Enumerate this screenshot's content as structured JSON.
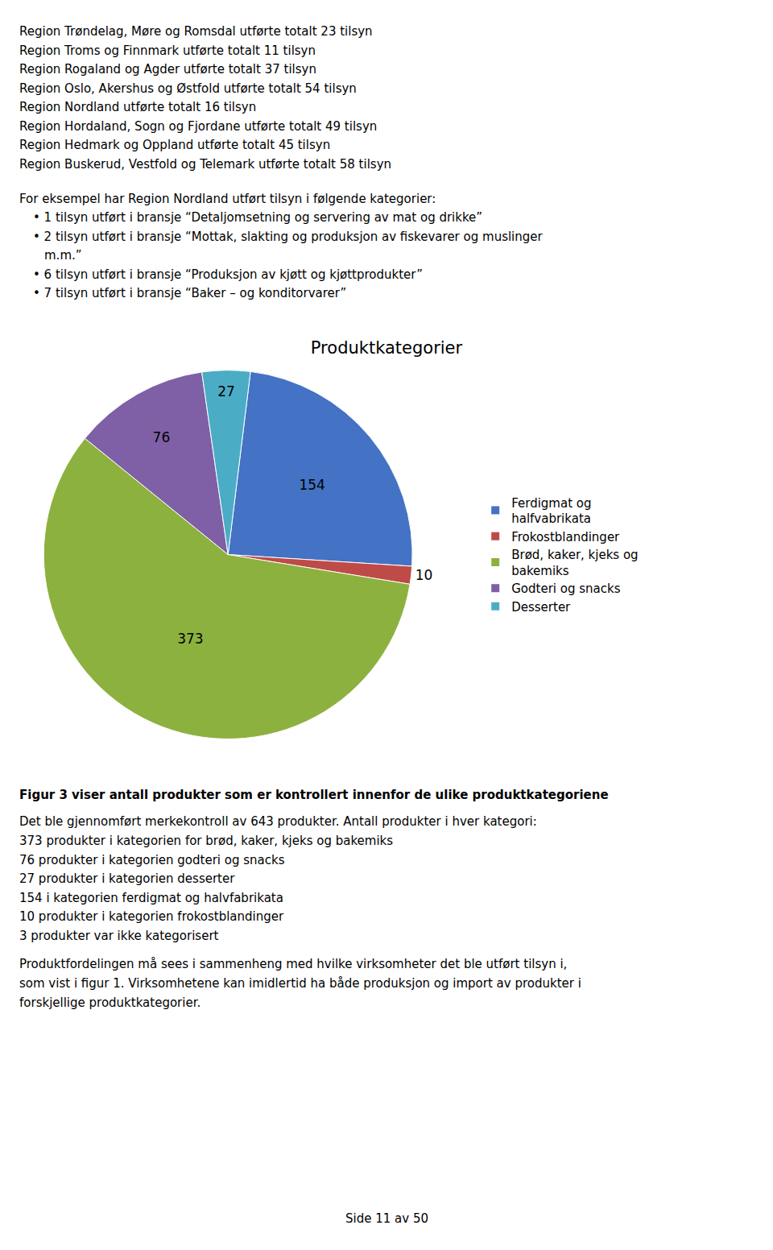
{
  "chart_data": {
    "type": "pie",
    "title": "Produktkategorier",
    "categories": [
      "Ferdigmat og\nhalfvabrikata",
      "Frokostblandinger",
      "Brød, kaker, kjeks og\nbakemiks",
      "Godteri og snacks",
      "Desserter"
    ],
    "values": [
      154,
      10,
      373,
      76,
      27
    ],
    "colors": [
      "#4472C4",
      "#BE4B48",
      "#8DB13E",
      "#7F5FA6",
      "#4BACC6"
    ],
    "data_labels": true,
    "legend": "right"
  },
  "header_lines": [
    "Region Trøndelag, Møre og Romsdal utførte totalt 23 tilsyn",
    "Region Troms og Finnmark utførte totalt 11 tilsyn",
    "Region Rogaland og Agder utførte totalt 37 tilsyn",
    "Region Oslo, Akershus og Østfold utførte totalt 54 tilsyn",
    "Region Nordland utførte totalt 16 tilsyn",
    "Region Hordaland, Sogn og Fjordane utførte totalt 49 tilsyn",
    "Region Hedmark og Oppland utførte totalt 45 tilsyn",
    "Region Buskerud, Vestfold og Telemark utførte totalt 58 tilsyn"
  ],
  "intro_text": "For eksempel har Region Nordland utført tilsyn i følgende kategorier:",
  "bullet_items": [
    [
      "• 1 tilsyn utført i bransje “Detaljomsetning og servering av mat og drikke”"
    ],
    [
      "• 2 tilsyn utført i bransje “Mottak, slakting og produksjon av fiskevarer og muslinger",
      "m.m.”"
    ],
    [
      "• 6 tilsyn utført i bransje “Produksjon av kjøtt og kjøttprodukter”"
    ],
    [
      "• 7 tilsyn utført i bransje “Baker – og konditorvarer”"
    ]
  ],
  "figure_caption": "Figur 3 viser antall produkter som er kontrollert innenfor de ulike produktkategoriene",
  "body_text": [
    "Det ble gjennomført merkekontroll av 643 produkter. Antall produkter i hver kategori:",
    "373 produkter i kategorien for brød, kaker, kjeks og bakemiks",
    "76 produkter i kategorien godteri og snacks",
    "27 produkter i kategorien desserter",
    "154 i kategorien ferdigmat og halvfabrikata",
    "10 produkter i kategorien frokostblandinger",
    "3 produkter var ikke kategorisert"
  ],
  "closing_lines": [
    "Produktfordelingen må sees i sammenheng med hvilke virksomheter det ble utført tilsyn i,",
    "som vist i figur 1. Virksomhetene kan imidlertid ha både produksjon og import av produkter i",
    "forskjellige produktkategorier."
  ],
  "page_number": "Side 11 av 50"
}
